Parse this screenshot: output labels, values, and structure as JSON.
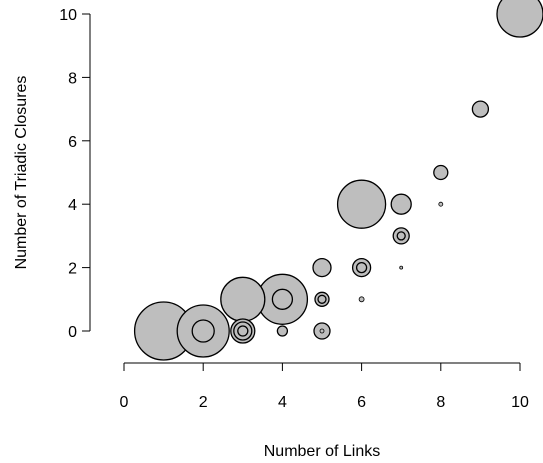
{
  "chart_data": {
    "type": "scatter",
    "title": "",
    "xlabel": "Number of Links",
    "ylabel": "Number of Triadic Closures",
    "xlim": [
      0,
      10
    ],
    "ylim": [
      0,
      10
    ],
    "x_ticks": [
      0,
      2,
      4,
      6,
      8,
      10
    ],
    "y_ticks": [
      0,
      2,
      4,
      6,
      8,
      10
    ],
    "grid": false,
    "legend": "none",
    "marker_fill": "#bebebe",
    "marker_stroke": "#000000",
    "series": [
      {
        "points": [
          {
            "x": 1,
            "y": 0,
            "size": 29
          },
          {
            "x": 2,
            "y": 0,
            "size": 26
          },
          {
            "x": 2,
            "y": 0,
            "size": 11
          },
          {
            "x": 3,
            "y": 1,
            "size": 22
          },
          {
            "x": 3,
            "y": 0,
            "size": 12
          },
          {
            "x": 3,
            "y": 0,
            "size": 9
          },
          {
            "x": 3,
            "y": 0,
            "size": 5
          },
          {
            "x": 4,
            "y": 1,
            "size": 25
          },
          {
            "x": 4,
            "y": 1,
            "size": 10
          },
          {
            "x": 4,
            "y": 0,
            "size": 5
          },
          {
            "x": 5,
            "y": 2,
            "size": 9
          },
          {
            "x": 5,
            "y": 1,
            "size": 7
          },
          {
            "x": 5,
            "y": 1,
            "size": 4
          },
          {
            "x": 5,
            "y": 0,
            "size": 8
          },
          {
            "x": 5,
            "y": 0,
            "size": 2
          },
          {
            "x": 6,
            "y": 4,
            "size": 24
          },
          {
            "x": 6,
            "y": 2,
            "size": 9
          },
          {
            "x": 6,
            "y": 2,
            "size": 5
          },
          {
            "x": 6,
            "y": 1,
            "size": 2.5
          },
          {
            "x": 7,
            "y": 4,
            "size": 10
          },
          {
            "x": 7,
            "y": 3,
            "size": 8
          },
          {
            "x": 7,
            "y": 3,
            "size": 4
          },
          {
            "x": 7,
            "y": 2,
            "size": 1.5
          },
          {
            "x": 8,
            "y": 5,
            "size": 7
          },
          {
            "x": 8,
            "y": 4,
            "size": 2
          },
          {
            "x": 9,
            "y": 7,
            "size": 8
          },
          {
            "x": 10,
            "y": 10,
            "size": 23
          }
        ]
      }
    ]
  }
}
